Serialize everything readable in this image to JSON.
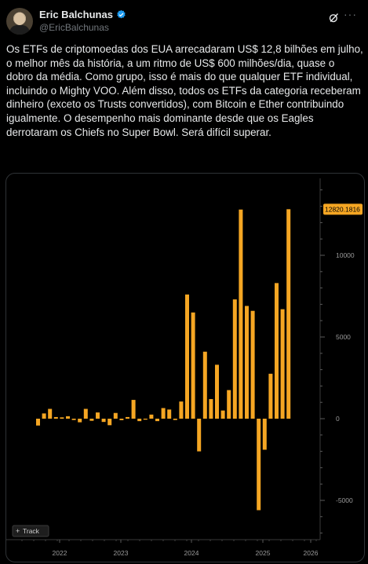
{
  "author": {
    "name": "Eric Balchunas",
    "handle": "@EricBalchunas"
  },
  "tweet_text": "Os ETFs de criptomoedas dos EUA arrecadaram US$ 12,8 bilhões em julho, o melhor mês da história, a um ritmo de US$ 600 milhões/dia, quase o dobro da média. Como grupo, isso é mais do que qualquer ETF individual, incluindo o Mighty VOO. Além disso, todos os ETFs da categoria receberam dinheiro (exceto os Trusts convertidos), com Bitcoin e Ether contribuindo igualmente. O desempenho mais dominante desde que os Eagles derrotaram os Chiefs no Super Bowl. Será difícil superar.",
  "icons": {
    "verified": "verified-badge-icon",
    "grok": "grok-icon",
    "more": "more-icon",
    "track": "crosshair-icon"
  },
  "colors": {
    "bar": "#f5a623",
    "last_label_bg": "#f5a623",
    "verified": "#1d9bf0"
  },
  "chart_data": {
    "type": "bar",
    "track_label": "Track",
    "x_tick_labels": [
      "2022",
      "2023",
      "2024",
      "2025",
      "2026"
    ],
    "y_ticks": [
      -5000,
      0,
      5000,
      10000
    ],
    "y_tick_labels": [
      "-5000",
      "0",
      "5000",
      "10000"
    ],
    "ylim": [
      -7500,
      14500
    ],
    "last_value_label": "12820.1816",
    "values": [
      -420,
      320,
      600,
      100,
      80,
      150,
      -80,
      -220,
      600,
      -130,
      380,
      -200,
      -400,
      350,
      -90,
      100,
      1150,
      -150,
      -60,
      250,
      -150,
      650,
      560,
      -80,
      1050,
      7600,
      6500,
      -2000,
      4100,
      1200,
      3300,
      500,
      1750,
      7300,
      12800,
      6900,
      6600,
      -5600,
      -1900,
      2750,
      8300,
      6700,
      12820.1816
    ]
  }
}
